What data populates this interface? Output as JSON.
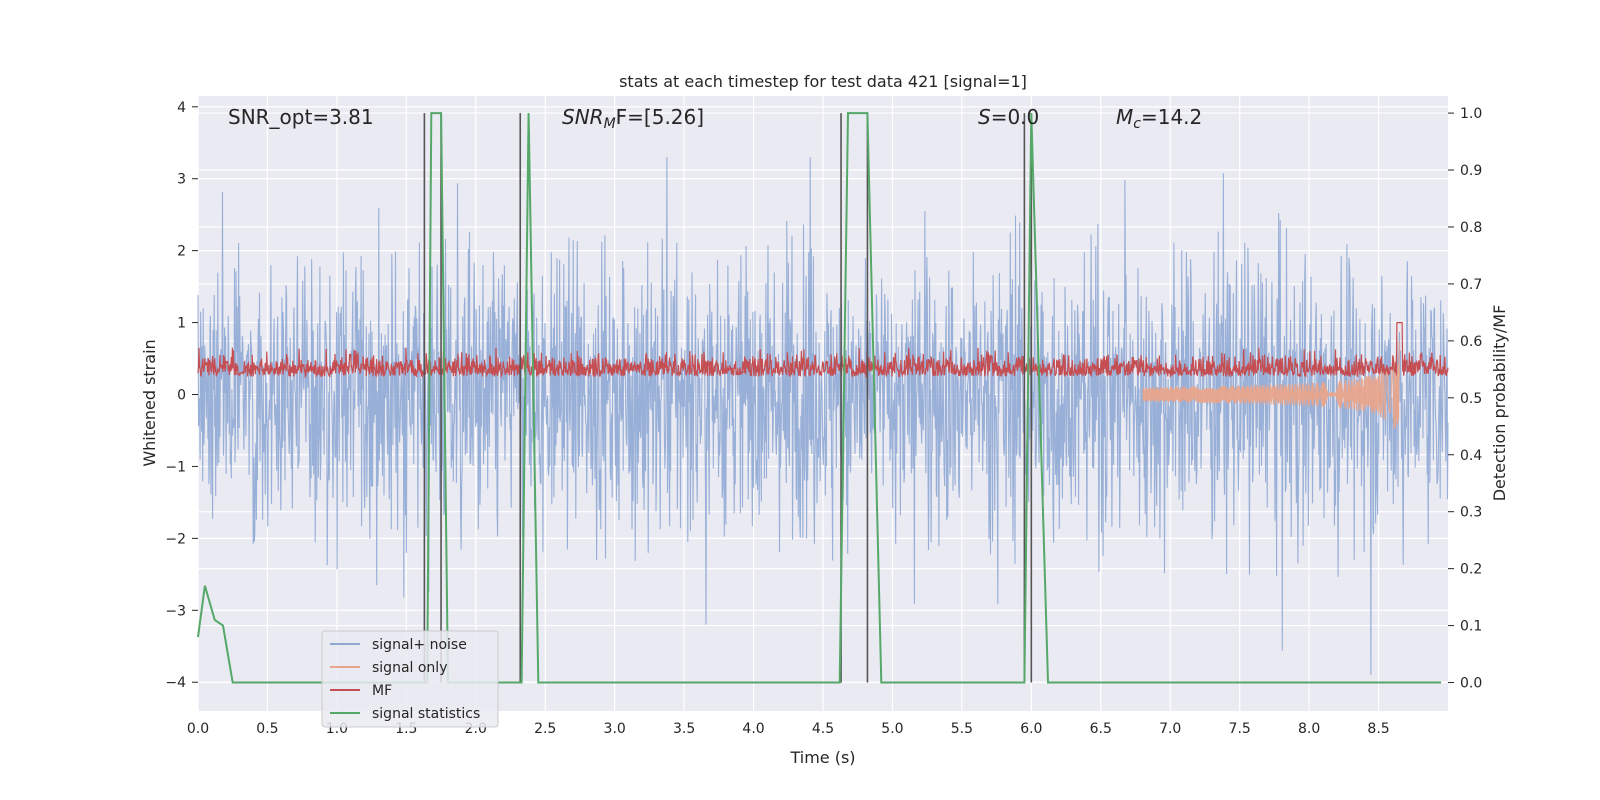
{
  "chart_data": {
    "type": "line",
    "title": "stats at each timestep for test data 421 [signal=1]",
    "xlabel": "Time (s)",
    "ylabel": "Whitened strain",
    "y2label": "Detection probability/MF",
    "xlim": [
      0.0,
      9.0
    ],
    "ylim": [
      -4.4,
      4.15
    ],
    "y2lim": [
      -0.05,
      1.03
    ],
    "xticks": [
      "0.0",
      "0.5",
      "1.0",
      "1.5",
      "2.0",
      "2.5",
      "3.0",
      "3.5",
      "4.0",
      "4.5",
      "5.0",
      "5.5",
      "6.0",
      "6.5",
      "7.0",
      "7.5",
      "8.0",
      "8.5"
    ],
    "yticks": [
      "4",
      "3",
      "2",
      "1",
      "0",
      "−1",
      "−2",
      "−3",
      "−4"
    ],
    "y2ticks": [
      "1.0",
      "0.9",
      "0.8",
      "0.7",
      "0.6",
      "0.5",
      "0.4",
      "0.3",
      "0.2",
      "0.1",
      "0.0"
    ],
    "grid": true,
    "legend_position": "lower-left",
    "annotations": {
      "snr_opt": "SNR_opt=3.81",
      "snr_mf_sym": "SNR",
      "snr_mf_sub": "M",
      "snr_mf_rest": "F=[5.26]",
      "s_sym": "S",
      "s_rest": "=0.0",
      "mc_sym": "M",
      "mc_sub": "c",
      "mc_rest": "=14.2"
    },
    "series": [
      {
        "name": "signal+ noise",
        "color": "#8fa8d4",
        "description_values": "noise band approx ±1.4 typical, peaks to ±3.3",
        "amplitude": 1.4
      },
      {
        "name": "signal only",
        "color": "#e8a58c",
        "chirp_end_time": 8.65,
        "chirp_peak_amplitude": 0.8
      },
      {
        "name": "MF",
        "color": "#c44e52",
        "baseline": 0.25,
        "amplitude": 0.35
      },
      {
        "name": "signal statistics",
        "color": "#55a868",
        "points": [
          [
            0.0,
            0.08
          ],
          [
            0.05,
            0.17
          ],
          [
            0.12,
            0.11
          ],
          [
            0.18,
            0.1
          ],
          [
            0.25,
            0.0
          ],
          [
            1.65,
            0.0
          ],
          [
            1.68,
            1.0
          ],
          [
            1.75,
            1.0
          ],
          [
            1.8,
            0.0
          ],
          [
            2.33,
            0.0
          ],
          [
            2.38,
            1.0
          ],
          [
            2.45,
            0.0
          ],
          [
            2.8,
            0.0
          ],
          [
            3.0,
            0.0
          ],
          [
            4.62,
            0.0
          ],
          [
            4.68,
            1.0
          ],
          [
            4.82,
            1.0
          ],
          [
            4.92,
            0.0
          ],
          [
            5.95,
            0.0
          ],
          [
            6.0,
            1.0
          ],
          [
            6.12,
            0.0
          ],
          [
            8.95,
            0.0
          ]
        ]
      }
    ],
    "vertical_markers": [
      1.63,
      1.75,
      2.32,
      4.63,
      4.82,
      5.95,
      6.0
    ]
  }
}
